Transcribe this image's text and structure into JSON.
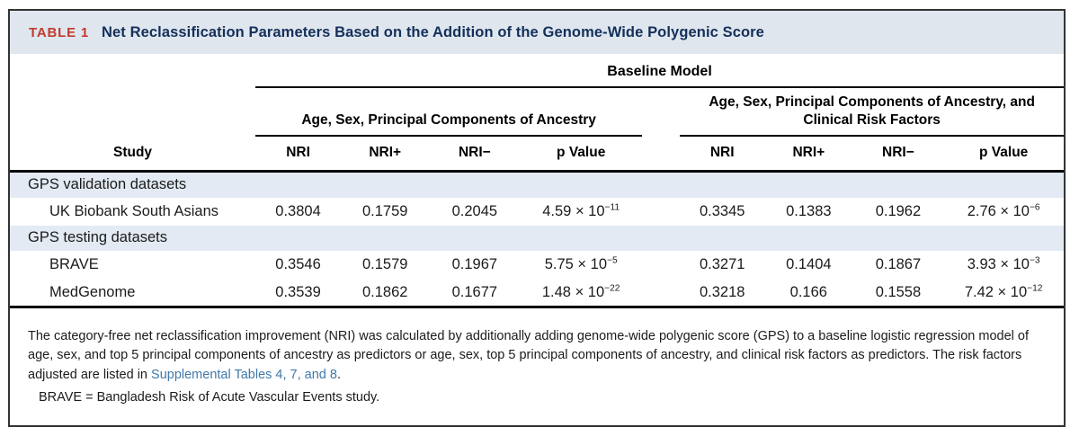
{
  "title_bar": {
    "table_label": "TABLE 1",
    "title": "Net Reclassification Parameters Based on the Addition of the Genome-Wide Polygenic Score"
  },
  "table": {
    "baseline_model_label": "Baseline Model",
    "group1_label": "Age, Sex, Principal Components of Ancestry",
    "group2_label": "Age, Sex, Principal Components of Ancestry, and Clinical Risk Factors",
    "study_label": "Study",
    "columns": [
      "NRI",
      "NRI+",
      "NRI−",
      "p Value",
      "NRI",
      "NRI+",
      "NRI−",
      "p Value"
    ],
    "rows": [
      {
        "type": "section",
        "label": "GPS validation datasets"
      },
      {
        "type": "data",
        "study": "UK Biobank South Asians",
        "values": [
          "0.3804",
          "0.1759",
          "0.2045",
          {
            "mantissa": "4.59",
            "exponent": "−11"
          },
          "0.3345",
          "0.1383",
          "0.1962",
          {
            "mantissa": "2.76",
            "exponent": "−6"
          }
        ]
      },
      {
        "type": "section",
        "label": "GPS testing datasets"
      },
      {
        "type": "data",
        "study": "BRAVE",
        "values": [
          "0.3546",
          "0.1579",
          "0.1967",
          {
            "mantissa": "5.75",
            "exponent": "−5"
          },
          "0.3271",
          "0.1404",
          "0.1867",
          {
            "mantissa": "3.93",
            "exponent": "−3"
          }
        ]
      },
      {
        "type": "data",
        "study": "MedGenome",
        "values": [
          "0.3539",
          "0.1862",
          "0.1677",
          {
            "mantissa": "1.48",
            "exponent": "−22"
          },
          "0.3218",
          "0.166",
          "0.1558",
          {
            "mantissa": "7.42",
            "exponent": "−12"
          }
        ]
      }
    ]
  },
  "footnote": {
    "text_before_link": "The category-free net reclassification improvement (NRI) was calculated by additionally adding genome-wide polygenic score (GPS) to a baseline logistic regression model of age, sex, and top 5 principal components of ancestry as predictors or age, sex, top 5 principal components of ancestry, and clinical risk factors as predictors. The risk factors adjusted are listed in ",
    "link_text": "Supplemental Tables 4, 7, and 8",
    "text_after_link": ".",
    "abbreviation_line": "BRAVE = Bangladesh Risk of Acute Vascular Events study."
  },
  "colors": {
    "table_label_red": "#c13b2d",
    "title_navy": "#14305a",
    "title_bar_bg": "#dfe6ee",
    "row_shade": "#e3eaf3",
    "link_blue": "#4079a9"
  }
}
